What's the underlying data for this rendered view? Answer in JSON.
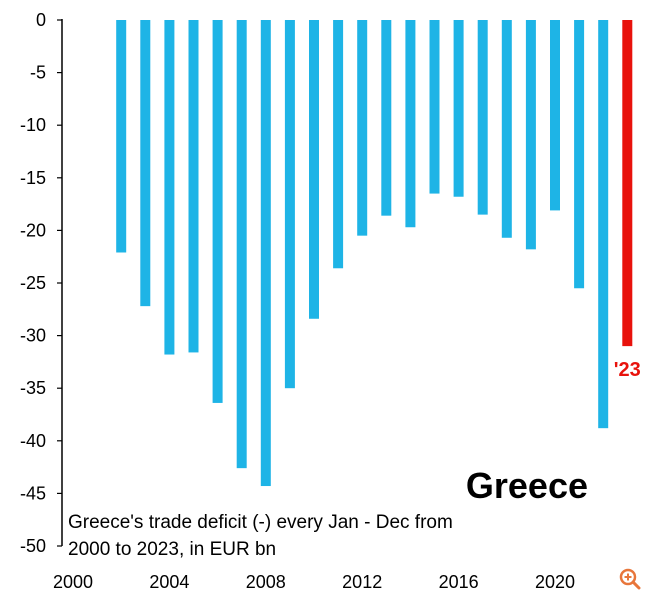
{
  "chart_data": {
    "type": "bar",
    "country_label": "Greece",
    "caption_lines": [
      "Greece's trade deficit (-) every Jan - Dec from",
      "2000 to 2023, in EUR bn"
    ],
    "x": [
      2000,
      2001,
      2002,
      2003,
      2004,
      2005,
      2006,
      2007,
      2008,
      2009,
      2010,
      2011,
      2012,
      2013,
      2014,
      2015,
      2016,
      2017,
      2018,
      2019,
      2020,
      2021,
      2022,
      2023
    ],
    "values": [
      null,
      null,
      -22.1,
      -27.2,
      -31.8,
      -31.6,
      -36.4,
      -42.6,
      -44.3,
      -35.0,
      -28.4,
      -23.6,
      -20.5,
      -18.6,
      -19.7,
      -16.5,
      -16.8,
      -18.5,
      -20.7,
      -21.8,
      -18.1,
      -25.5,
      -38.8,
      -31.0
    ],
    "highlight": {
      "x": 2023,
      "label": "'23"
    },
    "x_ticks": [
      {
        "value": 2000,
        "label": "2000"
      },
      {
        "value": 2004,
        "label": "2004"
      },
      {
        "value": 2008,
        "label": "2008"
      },
      {
        "value": 2012,
        "label": "2012"
      },
      {
        "value": 2016,
        "label": "2016"
      },
      {
        "value": 2020,
        "label": "2020"
      }
    ],
    "y_ticks": [
      {
        "value": 0,
        "label": "0"
      },
      {
        "value": -5,
        "label": "-5"
      },
      {
        "value": -10,
        "label": "-10"
      },
      {
        "value": -15,
        "label": "-15"
      },
      {
        "value": -20,
        "label": "-20"
      },
      {
        "value": -25,
        "label": "-25"
      },
      {
        "value": -30,
        "label": "-30"
      },
      {
        "value": -35,
        "label": "-35"
      },
      {
        "value": -40,
        "label": "-40"
      },
      {
        "value": -45,
        "label": "-45"
      },
      {
        "value": -50,
        "label": "-50"
      }
    ],
    "ylim": [
      -50,
      0
    ],
    "xlim": [
      2000,
      2023
    ],
    "colors": {
      "bar": "#1EB4E6",
      "highlight": "#E8120C",
      "axis": "#000000"
    }
  },
  "ui": {
    "zoom_icon": "zoom-in-icon",
    "zoom_color": "#E8763B"
  }
}
